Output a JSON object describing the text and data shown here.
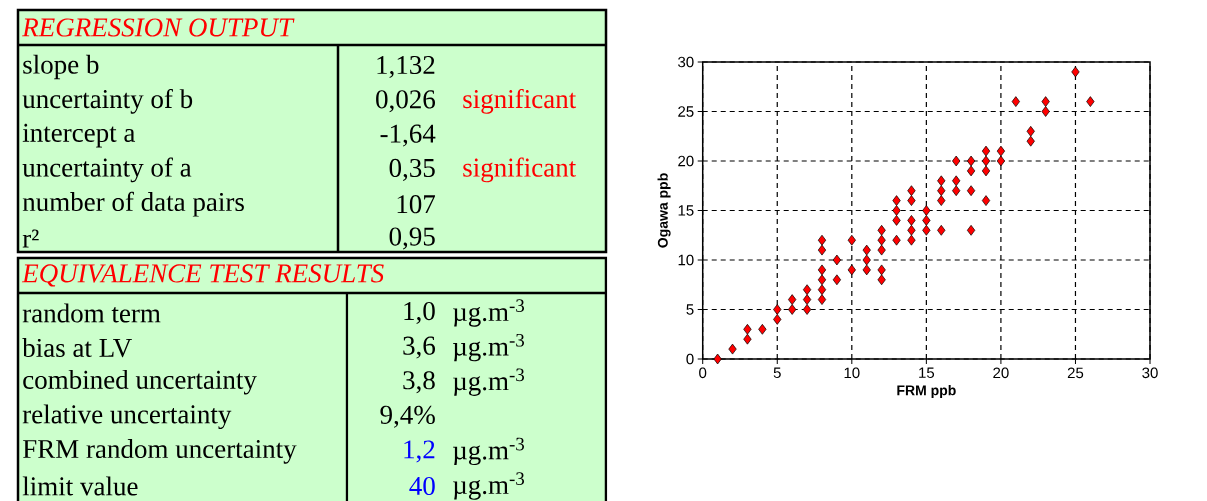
{
  "chart_data": [
    {
      "type": "other",
      "title": "REGRESSION OUTPUT",
      "categories": [
        "slope b",
        "uncertainty of b",
        "intercept a",
        "uncertainty of a",
        "number of data pairs",
        "r²"
      ],
      "values": [
        1.132,
        0.026,
        -1.64,
        0.35,
        107,
        0.95
      ],
      "value_labels": [
        "1,132",
        "0,026",
        "-1,64",
        "0,35",
        "107",
        "0,95"
      ],
      "annotations": [
        {
          "text": "significant",
          "y": "uncertainty of b"
        },
        {
          "text": "significant",
          "y": "uncertainty of a"
        }
      ]
    },
    {
      "type": "other",
      "title": "EQUIVALENCE TEST RESULTS",
      "categories": [
        "random term",
        "bias at LV",
        "combined uncertainty",
        "relative uncertainty",
        "FRM random uncertainty",
        "limit value"
      ],
      "values": [
        1.0,
        3.6,
        3.8,
        9.4,
        1.2,
        40
      ],
      "value_labels": [
        "1,0",
        "3,6",
        "3,8",
        "9,4%",
        "1,2",
        "40"
      ],
      "annotations": [
        {
          "text": "µg.m$^{-3}$",
          "y": "random term"
        },
        {
          "text": "µg.m$^{-3}$",
          "y": "bias at LV"
        },
        {
          "text": "µg.m$^{-3}$",
          "y": "combined uncertainty"
        },
        {
          "text": "µg.m$^{-3}$",
          "y": "FRM random uncertainty"
        },
        {
          "text": "µg.m$^{-3}$",
          "y": "limit value"
        }
      ]
    },
    {
      "type": "scatter",
      "xlabel": "FRM ppb",
      "ylabel": "Ogawa ppb",
      "xlim": [
        0,
        30
      ],
      "ylim": [
        0,
        30
      ],
      "xticks": [
        0,
        5,
        10,
        15,
        20,
        25,
        30
      ],
      "yticks": [
        0,
        5,
        10,
        15,
        20,
        25,
        30
      ],
      "grid": true,
      "marker": "diamond",
      "color": "#ff0000",
      "x": [
        1,
        2,
        3,
        3,
        4,
        5,
        5,
        6,
        6,
        7,
        7,
        7,
        8,
        8,
        8,
        8,
        8,
        8,
        9,
        9,
        10,
        10,
        11,
        11,
        11,
        12,
        12,
        12,
        12,
        12,
        13,
        13,
        13,
        13,
        14,
        14,
        14,
        14,
        14,
        15,
        15,
        15,
        16,
        16,
        16,
        16,
        17,
        17,
        17,
        18,
        18,
        18,
        18,
        19,
        19,
        19,
        19,
        20,
        20,
        21,
        22,
        22,
        23,
        23,
        25,
        26
      ],
      "values": [
        0,
        1,
        3,
        2,
        3,
        5,
        4,
        6,
        5,
        7,
        6,
        5,
        12,
        11,
        9,
        8,
        7,
        6,
        10,
        8,
        12,
        9,
        11,
        10,
        9,
        13,
        12,
        11,
        9,
        8,
        16,
        15,
        14,
        12,
        17,
        16,
        14,
        13,
        12,
        15,
        14,
        13,
        18,
        17,
        16,
        13,
        20,
        18,
        17,
        20,
        19,
        17,
        13,
        21,
        20,
        19,
        16,
        21,
        20,
        26,
        23,
        22,
        26,
        25,
        29,
        26
      ]
    }
  ]
}
